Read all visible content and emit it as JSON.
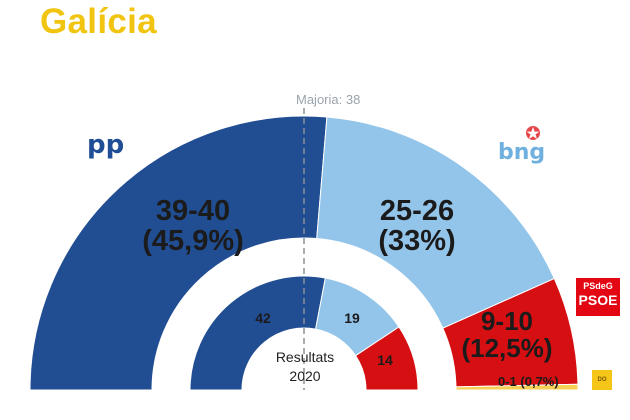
{
  "title": "Galícia",
  "majority_label": "Majoria: 38",
  "center_caption": {
    "line1": "Resultats",
    "line2": "2020"
  },
  "parties": {
    "pp": {
      "logo_text": "pp",
      "color": "#214d93"
    },
    "bng": {
      "logo_text": "bng",
      "color": "#93c5ea"
    },
    "psoe": {
      "logo_line1": "PSdeG",
      "logo_line2": "PSOE",
      "color": "#d50f12"
    },
    "other": {
      "logo_text": "DO",
      "color": "#f6cf55"
    }
  },
  "labels": {
    "pp_range": "39-40",
    "pp_pct": "(45,9%)",
    "bng_range": "25-26",
    "bng_pct": "(33%)",
    "psoe_range": "9-10",
    "psoe_pct": "(12,5%)",
    "other_label": "0-1 (0,7%)",
    "pp_2020": "42",
    "bng_2020": "19",
    "psoe_2020": "14"
  },
  "chart_data": [
    {
      "type": "pie",
      "title": "Galícia",
      "total_seats": 75,
      "majority": 38,
      "categories": [
        "PP",
        "BNG",
        "PSdeG-PSOE",
        "Other"
      ],
      "values": [
        39.5,
        25.5,
        9.5,
        0.5
      ],
      "labels": [
        "39-40 (45,9%)",
        "25-26 (33%)",
        "9-10 (12,5%)",
        "0-1 (0,7%)"
      ],
      "colors": [
        "#214d93",
        "#93c5ea",
        "#d50f12",
        "#f6cf55"
      ]
    },
    {
      "type": "pie",
      "title": "Resultats 2020",
      "categories": [
        "PP",
        "BNG",
        "PSdeG-PSOE"
      ],
      "values": [
        42,
        19,
        14
      ],
      "colors": [
        "#214d93",
        "#93c5ea",
        "#d50f12"
      ]
    }
  ]
}
